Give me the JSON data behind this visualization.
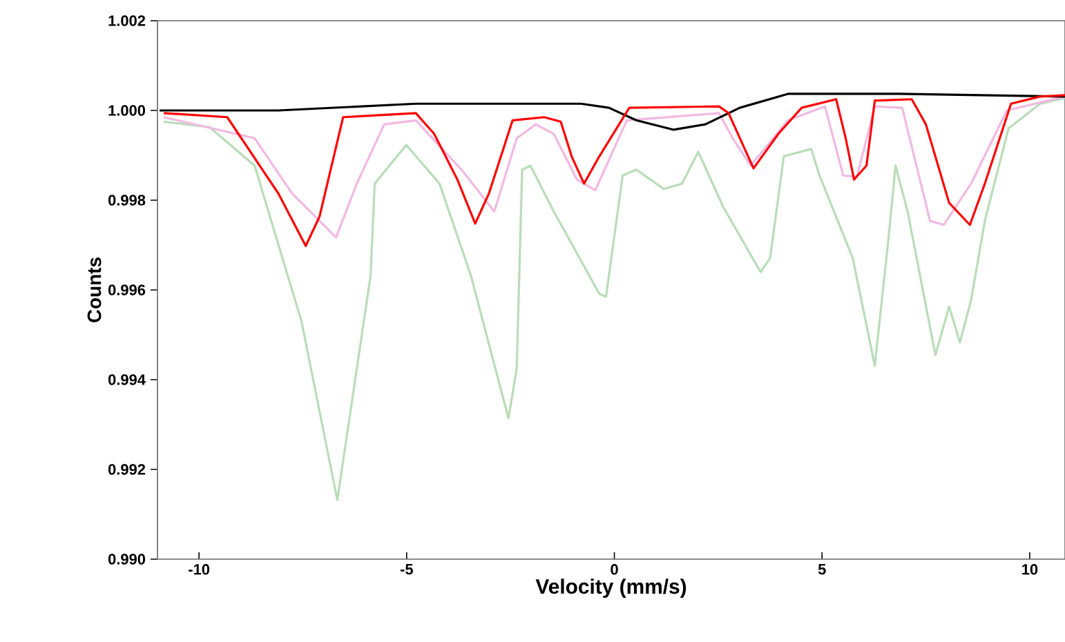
{
  "chart_data": {
    "type": "line",
    "xlabel": "Velocity (mm/s)",
    "ylabel": "Counts",
    "xlim": [
      -11,
      10.85
    ],
    "ylim": [
      0.99,
      1.002
    ],
    "xticks": [
      -10,
      -5,
      0,
      5,
      10
    ],
    "yticks": [
      {
        "value": 0.99,
        "label": "0.990"
      },
      {
        "value": 0.992,
        "label": "0.992"
      },
      {
        "value": 0.994,
        "label": "0.994"
      },
      {
        "value": 0.996,
        "label": "0.996"
      },
      {
        "value": 0.998,
        "label": "0.998"
      },
      {
        "value": 1.0,
        "label": "1.000"
      },
      {
        "value": 1.002,
        "label": "1.002"
      }
    ],
    "grid": false,
    "marker": "none",
    "line_style": "solid",
    "series": [
      {
        "color": "#b8dcb8",
        "x": [
          -10.85,
          -9.75,
          -8.66,
          -7.53,
          -6.67,
          -5.87,
          -5.77,
          -5.01,
          -4.21,
          -3.45,
          -2.55,
          -2.35,
          -2.22,
          -2.02,
          -1.46,
          -0.36,
          -0.2,
          0.2,
          0.53,
          1.19,
          1.63,
          2.02,
          2.62,
          3.52,
          3.75,
          4.08,
          4.74,
          4.94,
          5.74,
          6.27,
          6.6,
          6.77,
          7.06,
          7.73,
          8.06,
          8.32,
          8.59,
          8.92,
          9.49,
          10.25,
          10.85
        ],
        "values": [
          0.99975,
          0.99963,
          0.99877,
          0.99529,
          0.99132,
          0.99631,
          0.99837,
          0.99923,
          0.99837,
          0.99631,
          0.99314,
          0.99425,
          0.99868,
          0.99877,
          0.99775,
          0.99591,
          0.99585,
          0.99855,
          0.99868,
          0.99825,
          0.99837,
          0.99908,
          0.99785,
          0.9964,
          0.99671,
          0.99898,
          0.99914,
          0.99855,
          0.99671,
          0.99431,
          0.99714,
          0.99877,
          0.99775,
          0.99455,
          0.99563,
          0.99483,
          0.99578,
          0.99754,
          0.9996,
          1.00015,
          1.00028
        ]
      },
      {
        "color": "#f2b8e2",
        "x": [
          -10.85,
          -8.66,
          -7.76,
          -6.7,
          -6.2,
          -5.54,
          -4.78,
          -3.68,
          -2.89,
          -2.35,
          -1.89,
          -1.46,
          -0.9,
          -0.46,
          0.3,
          2.52,
          2.85,
          3.28,
          4.18,
          5.07,
          5.51,
          5.84,
          6.27,
          6.93,
          7.6,
          7.93,
          8.59,
          9.45,
          10.85
        ],
        "values": [
          0.99985,
          0.99938,
          0.99815,
          0.99717,
          0.99837,
          0.99969,
          0.99978,
          0.99868,
          0.99775,
          0.99938,
          0.99969,
          0.99948,
          0.99846,
          0.99822,
          0.99978,
          0.99994,
          0.99938,
          0.99877,
          0.99978,
          1.00009,
          0.99855,
          0.99852,
          1.00009,
          1.00006,
          0.99754,
          0.99745,
          0.99837,
          1.0,
          1.00031
        ]
      },
      {
        "color": "#000000",
        "x": [
          -10.95,
          -8.09,
          -4.78,
          -0.8,
          -0.13,
          0.53,
          1.43,
          2.19,
          3.02,
          4.18,
          6.83,
          10.85
        ],
        "values": [
          1.0,
          1.0,
          1.00015,
          1.00015,
          1.00006,
          0.99978,
          0.99957,
          0.99969,
          1.00006,
          1.00037,
          1.00037,
          1.00031
        ]
      },
      {
        "color": "#ff0000",
        "x": [
          -10.85,
          -9.32,
          -8.09,
          -7.43,
          -7.1,
          -6.53,
          -4.78,
          -4.34,
          -3.78,
          -3.35,
          -3.02,
          -2.45,
          -1.69,
          -1.29,
          -1.03,
          -0.73,
          -0.36,
          0.36,
          2.52,
          2.75,
          3.35,
          3.95,
          4.51,
          5.34,
          5.57,
          5.77,
          6.07,
          6.27,
          7.16,
          7.5,
          8.06,
          8.56,
          8.92,
          9.55,
          10.25,
          10.85
        ],
        "values": [
          0.99994,
          0.99985,
          0.99815,
          0.99698,
          0.99763,
          0.99985,
          0.99994,
          0.99948,
          0.99846,
          0.99748,
          0.99815,
          0.99978,
          0.99985,
          0.99975,
          0.99898,
          0.99837,
          0.99898,
          1.00006,
          1.00009,
          0.99994,
          0.99871,
          0.99948,
          1.00006,
          1.00025,
          0.99938,
          0.99846,
          0.99877,
          1.00022,
          1.00025,
          0.99969,
          0.99794,
          0.99745,
          0.99837,
          1.00015,
          1.00031,
          1.00034
        ]
      }
    ]
  }
}
